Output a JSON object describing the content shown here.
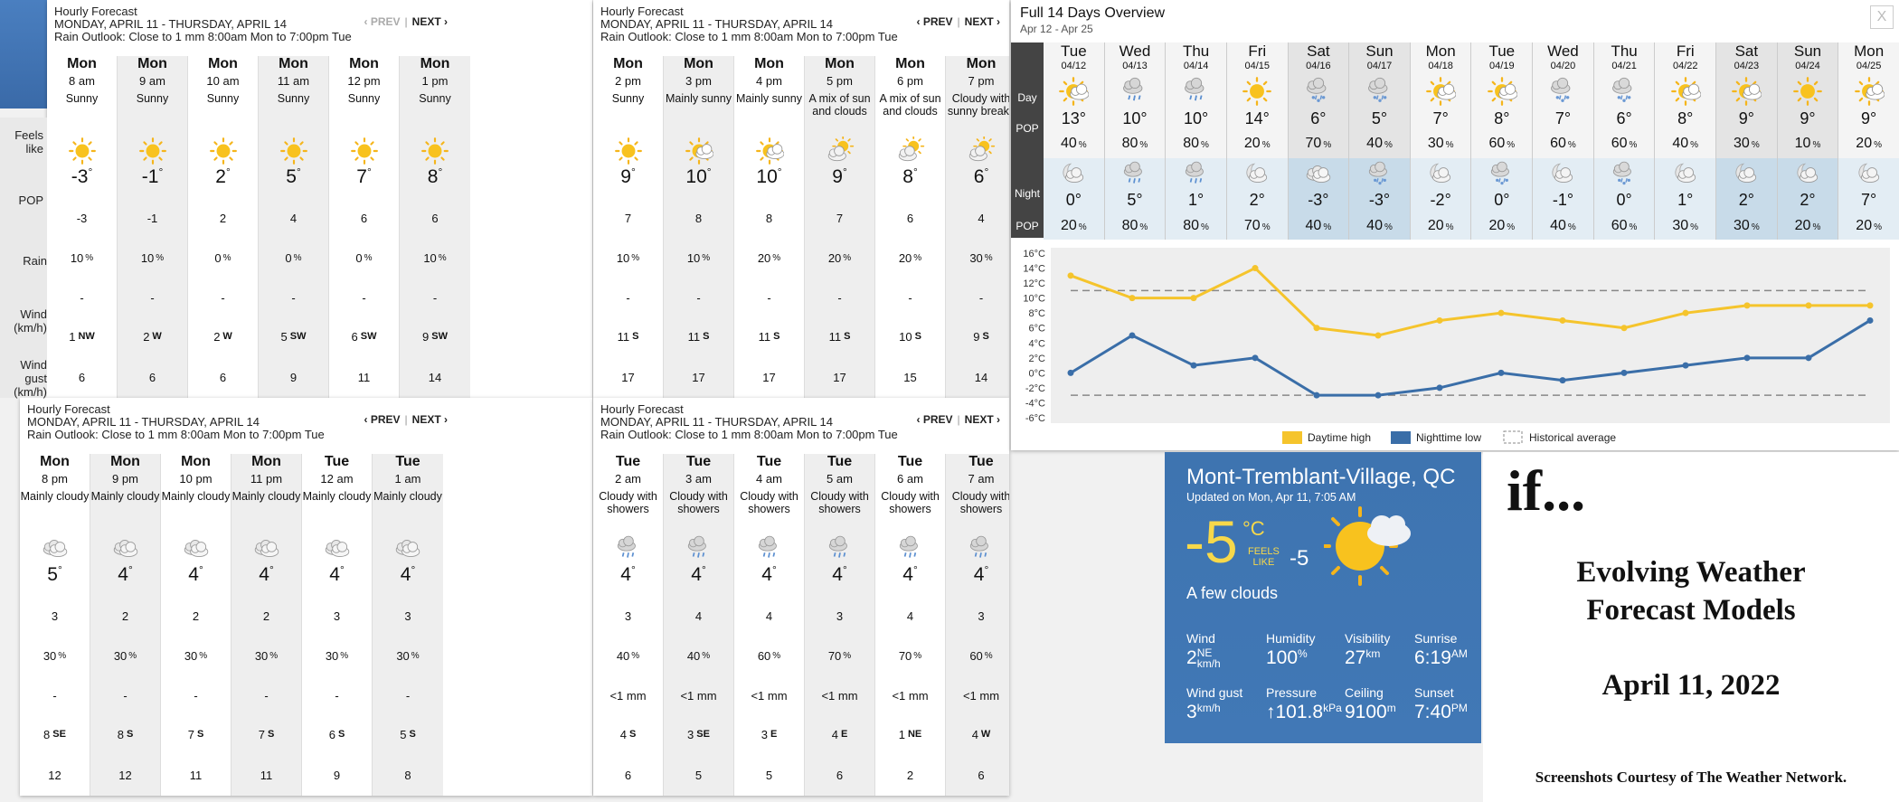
{
  "hourly_common": {
    "header": "Hourly Forecast",
    "range": "MONDAY, APRIL 11 - THURSDAY, APRIL 14",
    "outlook": "Rain Outlook: Close to 1 mm 8:00am Mon to 7:00pm Tue",
    "prev": "‹ PREV",
    "sep": "|",
    "next": "NEXT ›"
  },
  "row_labels": {
    "feels": "Feels like",
    "pop": "POP",
    "rain": "Rain",
    "wind": "Wind (km/h)",
    "gust": "Wind gust (km/h)"
  },
  "panels": [
    {
      "cols": [
        {
          "day": "Mon",
          "time": "8 am",
          "cond": "Sunny",
          "icon": "sun-icon",
          "temp": "-3",
          "feels": "-3",
          "pop": "10",
          "rain": "-",
          "wind": "1",
          "dir": "NW",
          "gust": "6"
        },
        {
          "day": "Mon",
          "time": "9 am",
          "cond": "Sunny",
          "icon": "sun-icon",
          "temp": "-1",
          "feels": "-1",
          "pop": "10",
          "rain": "-",
          "wind": "2",
          "dir": "W",
          "gust": "6"
        },
        {
          "day": "Mon",
          "time": "10 am",
          "cond": "Sunny",
          "icon": "sun-icon",
          "temp": "2",
          "feels": "2",
          "pop": "0",
          "rain": "-",
          "wind": "2",
          "dir": "W",
          "gust": "6"
        },
        {
          "day": "Mon",
          "time": "11 am",
          "cond": "Sunny",
          "icon": "sun-icon",
          "temp": "5",
          "feels": "4",
          "pop": "0",
          "rain": "-",
          "wind": "5",
          "dir": "SW",
          "gust": "9"
        },
        {
          "day": "Mon",
          "time": "12 pm",
          "cond": "Sunny",
          "icon": "sun-icon",
          "temp": "7",
          "feels": "6",
          "pop": "0",
          "rain": "-",
          "wind": "6",
          "dir": "SW",
          "gust": "11"
        },
        {
          "day": "Mon",
          "time": "1 pm",
          "cond": "Sunny",
          "icon": "sun-icon",
          "temp": "8",
          "feels": "6",
          "pop": "10",
          "rain": "-",
          "wind": "9",
          "dir": "SW",
          "gust": "14"
        }
      ]
    },
    {
      "cols": [
        {
          "day": "Mon",
          "time": "2 pm",
          "cond": "Sunny",
          "icon": "sun-icon",
          "temp": "9",
          "feels": "7",
          "pop": "10",
          "rain": "-",
          "wind": "11",
          "dir": "S",
          "gust": "17"
        },
        {
          "day": "Mon",
          "time": "3 pm",
          "cond": "Mainly sunny",
          "icon": "sun-cloud-icon",
          "temp": "10",
          "feels": "8",
          "pop": "10",
          "rain": "-",
          "wind": "11",
          "dir": "S",
          "gust": "17"
        },
        {
          "day": "Mon",
          "time": "4 pm",
          "cond": "Mainly sunny",
          "icon": "sun-cloud-icon",
          "temp": "10",
          "feels": "8",
          "pop": "20",
          "rain": "-",
          "wind": "11",
          "dir": "S",
          "gust": "17"
        },
        {
          "day": "Mon",
          "time": "5 pm",
          "cond": "A mix of sun and clouds",
          "icon": "cloud-sun-icon",
          "temp": "9",
          "feels": "7",
          "pop": "20",
          "rain": "-",
          "wind": "11",
          "dir": "S",
          "gust": "17"
        },
        {
          "day": "Mon",
          "time": "6 pm",
          "cond": "A mix of sun and clouds",
          "icon": "cloud-sun-icon",
          "temp": "8",
          "feels": "6",
          "pop": "20",
          "rain": "-",
          "wind": "10",
          "dir": "S",
          "gust": "15"
        },
        {
          "day": "Mon",
          "time": "7 pm",
          "cond": "Cloudy with sunny breaks",
          "icon": "cloud-sun-icon",
          "temp": "6",
          "feels": "4",
          "pop": "30",
          "rain": "-",
          "wind": "9",
          "dir": "S",
          "gust": "14"
        }
      ]
    },
    {
      "cols": [
        {
          "day": "Mon",
          "time": "8 pm",
          "cond": "Mainly cloudy",
          "icon": "cloud-icon",
          "temp": "5",
          "feels": "3",
          "pop": "30",
          "rain": "-",
          "wind": "8",
          "dir": "SE",
          "gust": "12"
        },
        {
          "day": "Mon",
          "time": "9 pm",
          "cond": "Mainly cloudy",
          "icon": "cloud-icon",
          "temp": "4",
          "feels": "2",
          "pop": "30",
          "rain": "-",
          "wind": "8",
          "dir": "S",
          "gust": "12"
        },
        {
          "day": "Mon",
          "time": "10 pm",
          "cond": "Mainly cloudy",
          "icon": "cloud-icon",
          "temp": "4",
          "feels": "2",
          "pop": "30",
          "rain": "-",
          "wind": "7",
          "dir": "S",
          "gust": "11"
        },
        {
          "day": "Mon",
          "time": "11 pm",
          "cond": "Mainly cloudy",
          "icon": "cloud-icon",
          "temp": "4",
          "feels": "2",
          "pop": "30",
          "rain": "-",
          "wind": "7",
          "dir": "S",
          "gust": "11"
        },
        {
          "day": "Tue",
          "time": "12 am",
          "cond": "Mainly cloudy",
          "icon": "cloud-icon",
          "temp": "4",
          "feels": "3",
          "pop": "30",
          "rain": "-",
          "wind": "6",
          "dir": "S",
          "gust": "9"
        },
        {
          "day": "Tue",
          "time": "1 am",
          "cond": "Mainly cloudy",
          "icon": "cloud-icon",
          "temp": "4",
          "feels": "3",
          "pop": "30",
          "rain": "-",
          "wind": "5",
          "dir": "S",
          "gust": "8"
        }
      ]
    },
    {
      "cols": [
        {
          "day": "Tue",
          "time": "2 am",
          "cond": "Cloudy with showers",
          "icon": "cloud-rain-icon",
          "temp": "4",
          "feels": "3",
          "pop": "40",
          "rain": "<1 mm",
          "wind": "4",
          "dir": "S",
          "gust": "6"
        },
        {
          "day": "Tue",
          "time": "3 am",
          "cond": "Cloudy with showers",
          "icon": "cloud-rain-icon",
          "temp": "4",
          "feels": "4",
          "pop": "40",
          "rain": "<1 mm",
          "wind": "3",
          "dir": "SE",
          "gust": "5"
        },
        {
          "day": "Tue",
          "time": "4 am",
          "cond": "Cloudy with showers",
          "icon": "cloud-rain-icon",
          "temp": "4",
          "feels": "4",
          "pop": "60",
          "rain": "<1 mm",
          "wind": "3",
          "dir": "E",
          "gust": "5"
        },
        {
          "day": "Tue",
          "time": "5 am",
          "cond": "Cloudy with showers",
          "icon": "cloud-rain-icon",
          "temp": "4",
          "feels": "3",
          "pop": "70",
          "rain": "<1 mm",
          "wind": "4",
          "dir": "E",
          "gust": "6"
        },
        {
          "day": "Tue",
          "time": "6 am",
          "cond": "Cloudy with showers",
          "icon": "cloud-rain-icon",
          "temp": "4",
          "feels": "4",
          "pop": "70",
          "rain": "<1 mm",
          "wind": "1",
          "dir": "NE",
          "gust": "2"
        },
        {
          "day": "Tue",
          "time": "7 am",
          "cond": "Cloudy with showers",
          "icon": "cloud-rain-icon",
          "temp": "4",
          "feels": "3",
          "pop": "60",
          "rain": "<1 mm",
          "wind": "4",
          "dir": "W",
          "gust": "6"
        }
      ]
    }
  ],
  "overview": {
    "title": "Full 14 Days Overview",
    "subtitle": "Apr 12 - Apr 25",
    "close": "X",
    "labels": {
      "day": "Day",
      "pop": "POP",
      "night": "Night",
      "pop2": "POP"
    },
    "days": [
      {
        "d": "Tue",
        "date": "04/12",
        "di": "sun-cloud-icon",
        "hi": "13",
        "dp": "40",
        "ni": "moon-cloud-icon",
        "lo": "0",
        "np": "20"
      },
      {
        "d": "Wed",
        "date": "04/13",
        "di": "cloud-rain-icon",
        "hi": "10",
        "dp": "80",
        "ni": "cloud-rain-icon",
        "lo": "5",
        "np": "80"
      },
      {
        "d": "Thu",
        "date": "04/14",
        "di": "cloud-rain-icon",
        "hi": "10",
        "dp": "80",
        "ni": "cloud-rain-icon",
        "lo": "1",
        "np": "80"
      },
      {
        "d": "Fri",
        "date": "04/15",
        "di": "sun-icon",
        "hi": "14",
        "dp": "20",
        "ni": "moon-cloud-icon",
        "lo": "2",
        "np": "70"
      },
      {
        "d": "Sat",
        "date": "04/16",
        "di": "cloud-snow-icon",
        "hi": "6",
        "dp": "70",
        "ni": "cloud-icon",
        "lo": "-3",
        "np": "40"
      },
      {
        "d": "Sun",
        "date": "04/17",
        "di": "cloud-snow-icon",
        "hi": "5",
        "dp": "40",
        "ni": "cloud-snow-icon",
        "lo": "-3",
        "np": "40"
      },
      {
        "d": "Mon",
        "date": "04/18",
        "di": "sun-cloud-icon",
        "hi": "7",
        "dp": "30",
        "ni": "moon-cloud-icon",
        "lo": "-2",
        "np": "20"
      },
      {
        "d": "Tue",
        "date": "04/19",
        "di": "sun-cloud-icon",
        "hi": "8",
        "dp": "60",
        "ni": "cloud-snow-icon",
        "lo": "0",
        "np": "20"
      },
      {
        "d": "Wed",
        "date": "04/20",
        "di": "cloud-snow-icon",
        "hi": "7",
        "dp": "60",
        "ni": "moon-cloud-icon",
        "lo": "-1",
        "np": "40"
      },
      {
        "d": "Thu",
        "date": "04/21",
        "di": "cloud-snow-icon",
        "hi": "6",
        "dp": "60",
        "ni": "cloud-snow-icon",
        "lo": "0",
        "np": "60"
      },
      {
        "d": "Fri",
        "date": "04/22",
        "di": "sun-cloud-icon",
        "hi": "8",
        "dp": "40",
        "ni": "moon-cloud-icon",
        "lo": "1",
        "np": "30"
      },
      {
        "d": "Sat",
        "date": "04/23",
        "di": "sun-cloud-icon",
        "hi": "9",
        "dp": "30",
        "ni": "moon-cloud-icon",
        "lo": "2",
        "np": "30"
      },
      {
        "d": "Sun",
        "date": "04/24",
        "di": "sun-icon",
        "hi": "9",
        "dp": "10",
        "ni": "moon-cloud-icon",
        "lo": "2",
        "np": "20"
      },
      {
        "d": "Mon",
        "date": "04/25",
        "di": "sun-cloud-icon",
        "hi": "9",
        "dp": "20",
        "ni": "moon-cloud-icon",
        "lo": "7",
        "np": "20"
      }
    ]
  },
  "chart_data": {
    "type": "line",
    "categories": [
      "04/12",
      "04/13",
      "04/14",
      "04/15",
      "04/16",
      "04/17",
      "04/18",
      "04/19",
      "04/20",
      "04/21",
      "04/22",
      "04/23",
      "04/24",
      "04/25"
    ],
    "series": [
      {
        "name": "Daytime high",
        "color": "#f5c42c",
        "values": [
          13,
          10,
          10,
          14,
          6,
          5,
          7,
          8,
          7,
          6,
          8,
          9,
          9,
          9
        ]
      },
      {
        "name": "Nighttime low",
        "color": "#3a6ea8",
        "values": [
          0,
          5,
          1,
          2,
          -3,
          -3,
          -2,
          0,
          -1,
          0,
          1,
          2,
          2,
          7
        ]
      },
      {
        "name": "Historical average",
        "color": "#888888",
        "values": [
          11,
          11,
          11,
          11,
          11,
          11,
          11,
          11,
          11,
          11,
          11,
          11,
          11,
          11
        ],
        "values_low": [
          -3,
          -3,
          -3,
          -3,
          -3,
          -3,
          -3,
          -3,
          -3,
          -3,
          -3,
          -3,
          -3,
          -3
        ]
      }
    ],
    "yticks": [
      "16°C",
      "14°C",
      "12°C",
      "10°C",
      "8°C",
      "6°C",
      "4°C",
      "2°C",
      "0°C",
      "-2°C",
      "-4°C",
      "-6°C"
    ],
    "ylim": [
      -6,
      16
    ],
    "legend": "bottom"
  },
  "current": {
    "location": "Mont-Tremblant-Village, QC",
    "updated": "Updated on Mon, Apr 11, 7:05 AM",
    "temp": "-5",
    "unit": "°C",
    "feels_label_1": "FEELS",
    "feels_label_2": "LIKE",
    "feels": "-5",
    "desc": "A few clouds",
    "wind_t": "Wind",
    "wind_v": "2",
    "wind_dir": "NE",
    "wind_u": "km/h",
    "hum_t": "Humidity",
    "hum_v": "100",
    "hum_u": "%",
    "vis_t": "Visibility",
    "vis_v": "27",
    "vis_u": "km",
    "sunrise_t": "Sunrise",
    "sunrise_v": "6:19",
    "sunrise_u": "AM",
    "gust_t": "Wind gust",
    "gust_v": "3",
    "gust_u": "km/h",
    "press_t": "Pressure",
    "press_v": "↑101.8",
    "press_u": "kPa",
    "ceil_t": "Ceiling",
    "ceil_v": "9100",
    "ceil_u": "m",
    "sunset_t": "Sunset",
    "sunset_v": "7:40",
    "sunset_u": "PM"
  },
  "slide": {
    "if": "if...",
    "title_1": "Evolving Weather",
    "title_2": "Forecast Models",
    "date": "April 11, 2022",
    "credit": "Screenshots Courtesy of The Weather Network."
  }
}
